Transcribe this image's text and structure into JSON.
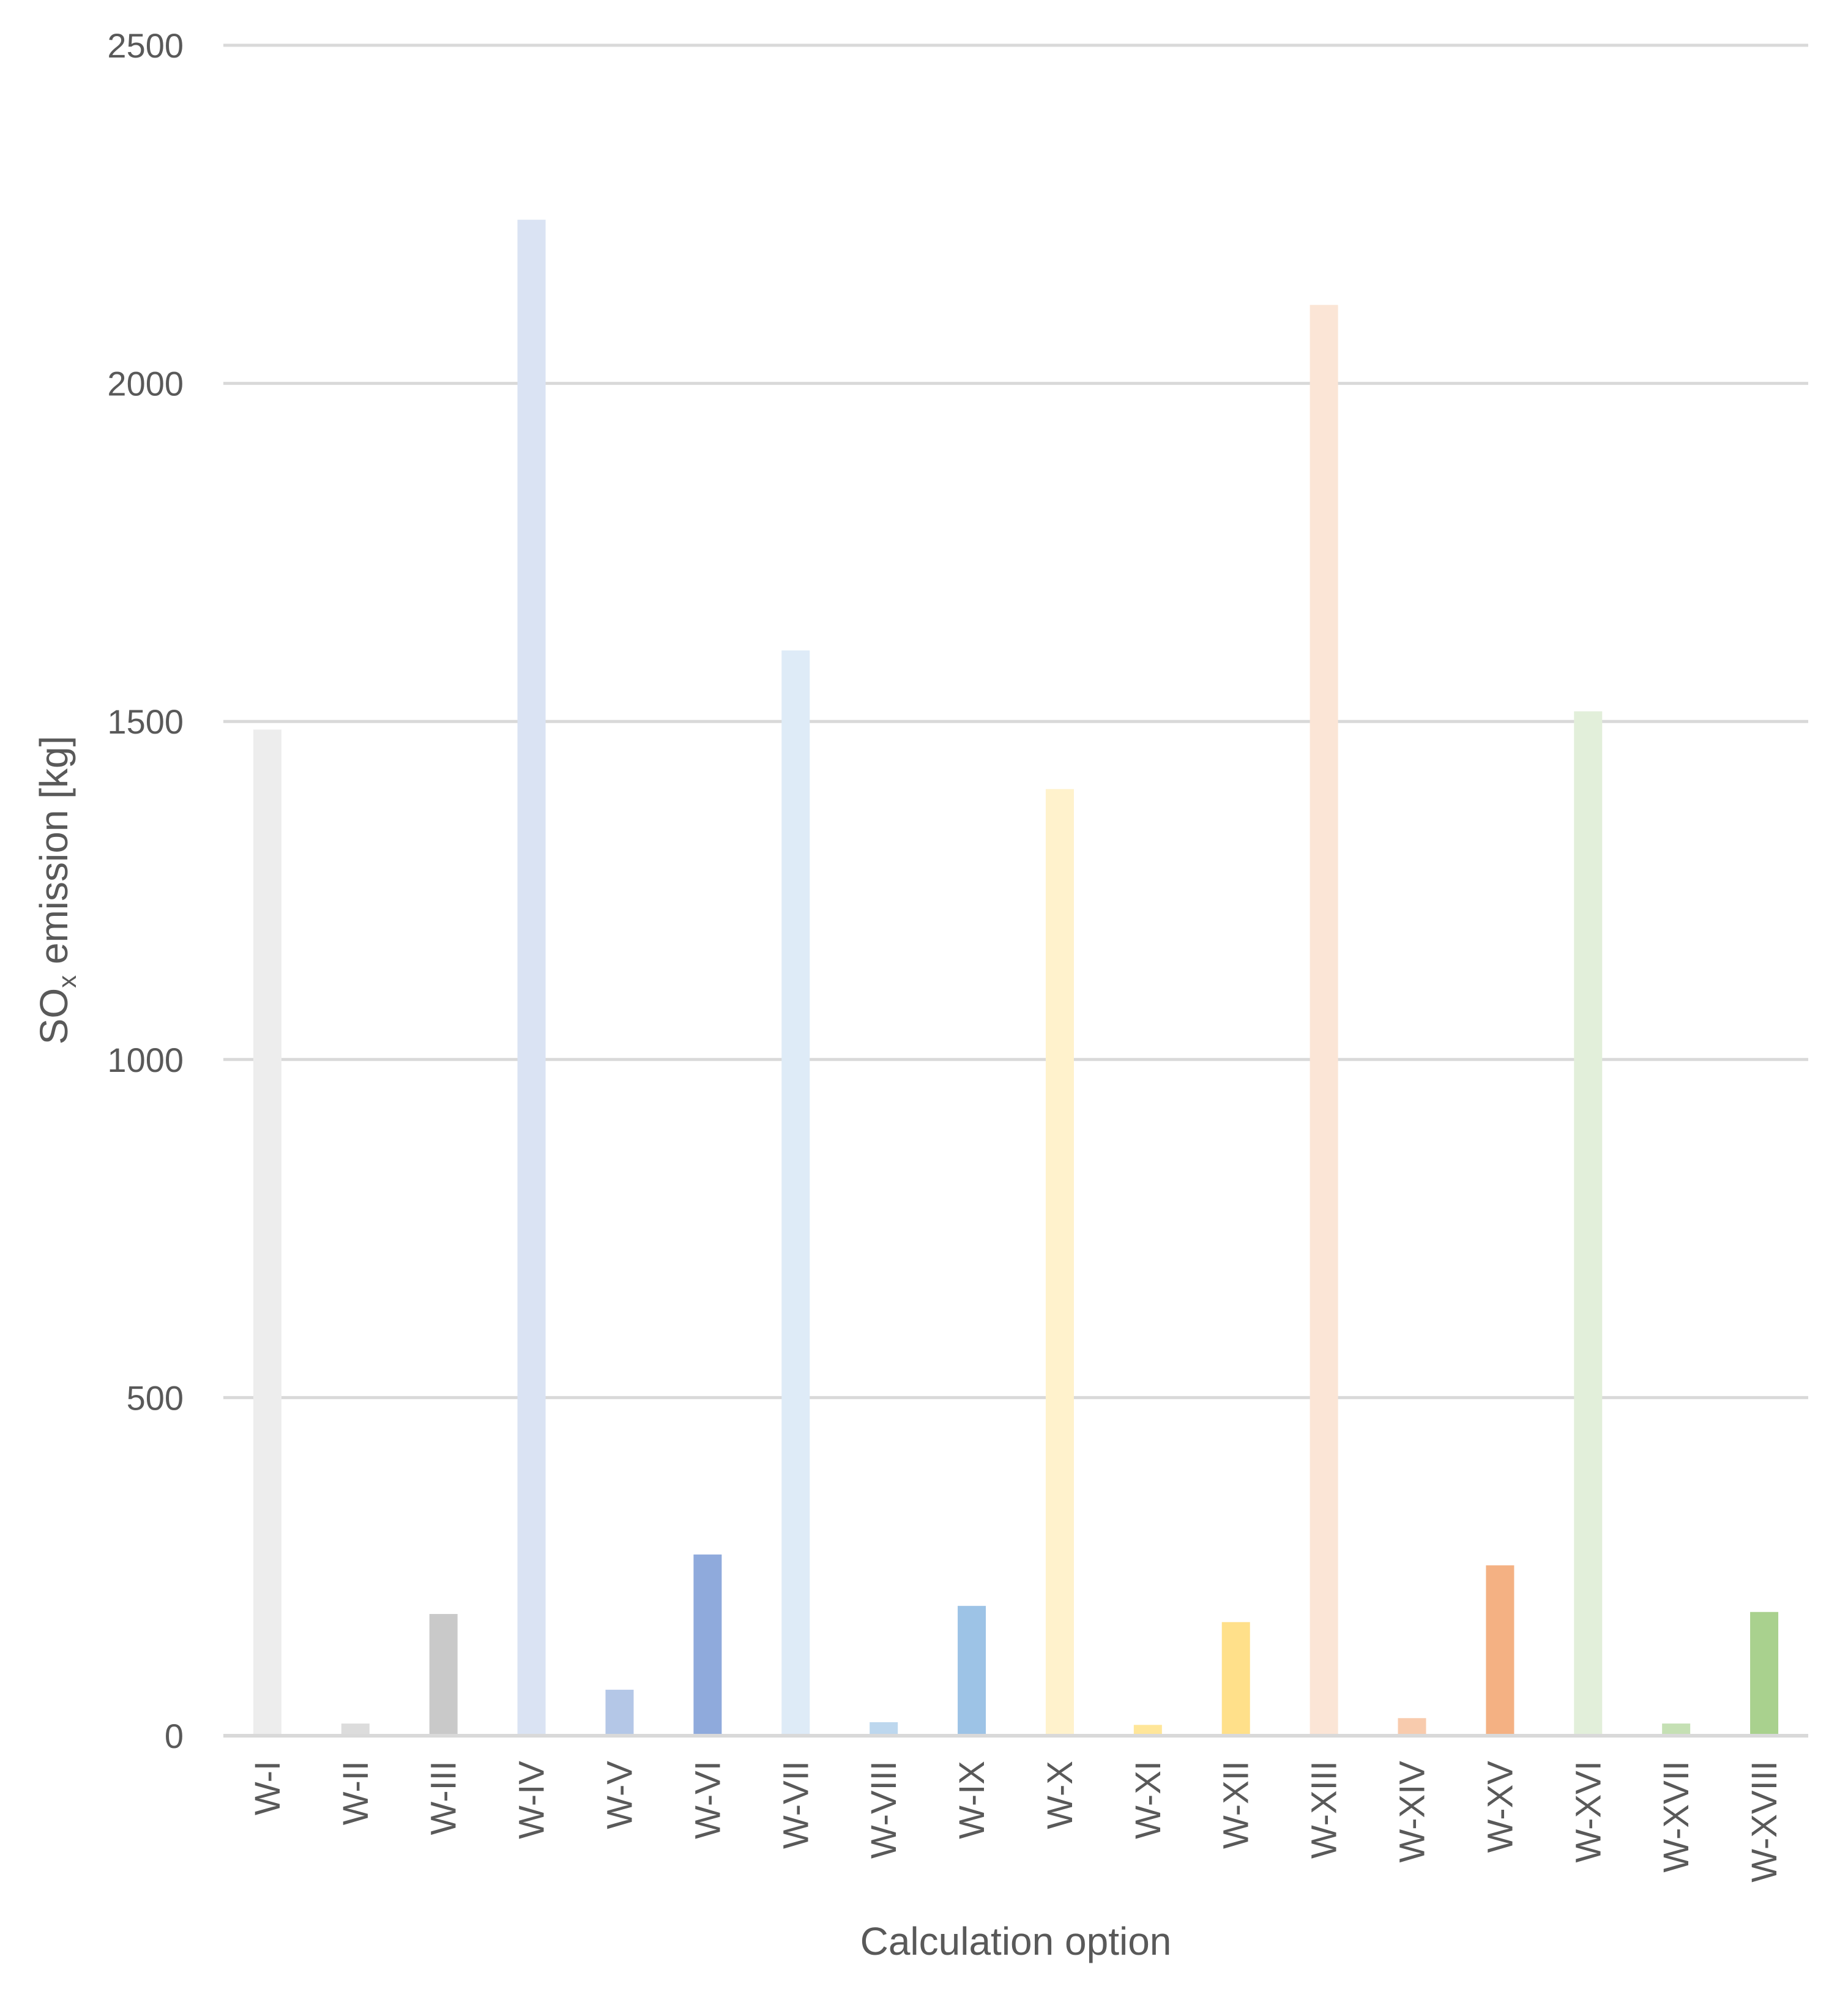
{
  "chart_data": {
    "type": "bar",
    "categories": [
      "W-I",
      "W-II",
      "W-III",
      "W-IV",
      "W-V",
      "W-VI",
      "W-VII",
      "W-VIII",
      "W-IX",
      "W-X",
      "W-XI",
      "W-XII",
      "W-XIII",
      "W-XIV",
      "W-XV",
      "W-XVI",
      "W-XVII",
      "W-XVIII"
    ],
    "values": [
      1488,
      18,
      180,
      2242,
      68,
      268,
      1605,
      20,
      192,
      1400,
      16,
      168,
      2116,
      26,
      252,
      1515,
      18,
      183
    ],
    "colors": [
      "#ededed",
      "#dcdcdc",
      "#c9c9c9",
      "#dae3f3",
      "#b4c7e7",
      "#8faadc",
      "#deebf7",
      "#bdd7ee",
      "#9dc3e6",
      "#fff2cc",
      "#ffe699",
      "#ffe08a",
      "#fbe5d6",
      "#f8cbad",
      "#f4b183",
      "#e2efda",
      "#c5e0b4",
      "#a9d18e"
    ],
    "title": "",
    "xlabel": "Calculation option",
    "ylabel": {
      "prefix": "SO",
      "subscript": "x",
      "suffix": " emission [kg]"
    },
    "ylim": [
      0,
      2500
    ],
    "yticks": [
      "0",
      "500",
      "1000",
      "1500",
      "2000",
      "2500"
    ],
    "grid": true,
    "legend": "none"
  }
}
